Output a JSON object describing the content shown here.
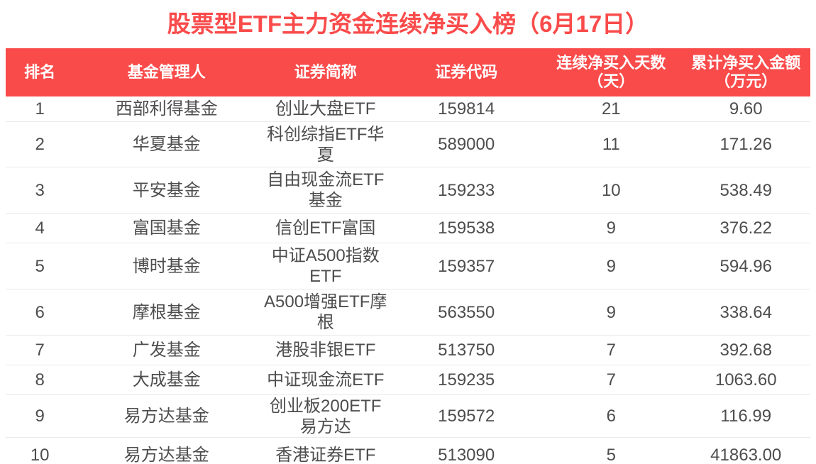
{
  "colors": {
    "accent": "#FA4B4B",
    "header_text": "#FFFFFF",
    "body_text": "#4D4D4D",
    "divider": "#EAEAEA",
    "background": "#FFFFFF"
  },
  "chart_data": {
    "type": "table",
    "title": "股票型ETF主力资金连续净买入榜（6月17日）",
    "columns": [
      {
        "key": "rank",
        "label": "排名"
      },
      {
        "key": "manager",
        "label": "基金管理人"
      },
      {
        "key": "name",
        "label": "证券简称"
      },
      {
        "key": "code",
        "label": "证券代码"
      },
      {
        "key": "days",
        "label": "连续净买入天数\n（天）"
      },
      {
        "key": "amount",
        "label": "累计净买入金额\n（万元）"
      }
    ],
    "rows": [
      {
        "rank": "1",
        "manager": "西部利得基金",
        "name": "创业大盘ETF",
        "code": "159814",
        "days": "21",
        "amount": "9.60"
      },
      {
        "rank": "2",
        "manager": "华夏基金",
        "name": "科创综指ETF华\n夏",
        "code": "589000",
        "days": "11",
        "amount": "171.26"
      },
      {
        "rank": "3",
        "manager": "平安基金",
        "name": "自由现金流ETF\n基金",
        "code": "159233",
        "days": "10",
        "amount": "538.49"
      },
      {
        "rank": "4",
        "manager": "富国基金",
        "name": "信创ETF富国",
        "code": "159538",
        "days": "9",
        "amount": "376.22"
      },
      {
        "rank": "5",
        "manager": "博时基金",
        "name": "中证A500指数\nETF",
        "code": "159357",
        "days": "9",
        "amount": "594.96"
      },
      {
        "rank": "6",
        "manager": "摩根基金",
        "name": "A500增强ETF摩\n根",
        "code": "563550",
        "days": "9",
        "amount": "338.64"
      },
      {
        "rank": "7",
        "manager": "广发基金",
        "name": "港股非银ETF",
        "code": "513750",
        "days": "7",
        "amount": "392.68"
      },
      {
        "rank": "8",
        "manager": "大成基金",
        "name": "中证现金流ETF",
        "code": "159235",
        "days": "7",
        "amount": "1063.60"
      },
      {
        "rank": "9",
        "manager": "易方达基金",
        "name": "创业板200ETF\n易方达",
        "code": "159572",
        "days": "6",
        "amount": "116.99"
      },
      {
        "rank": "10",
        "manager": "易方达基金",
        "name": "香港证券ETF",
        "code": "513090",
        "days": "5",
        "amount": "41863.00"
      }
    ]
  }
}
